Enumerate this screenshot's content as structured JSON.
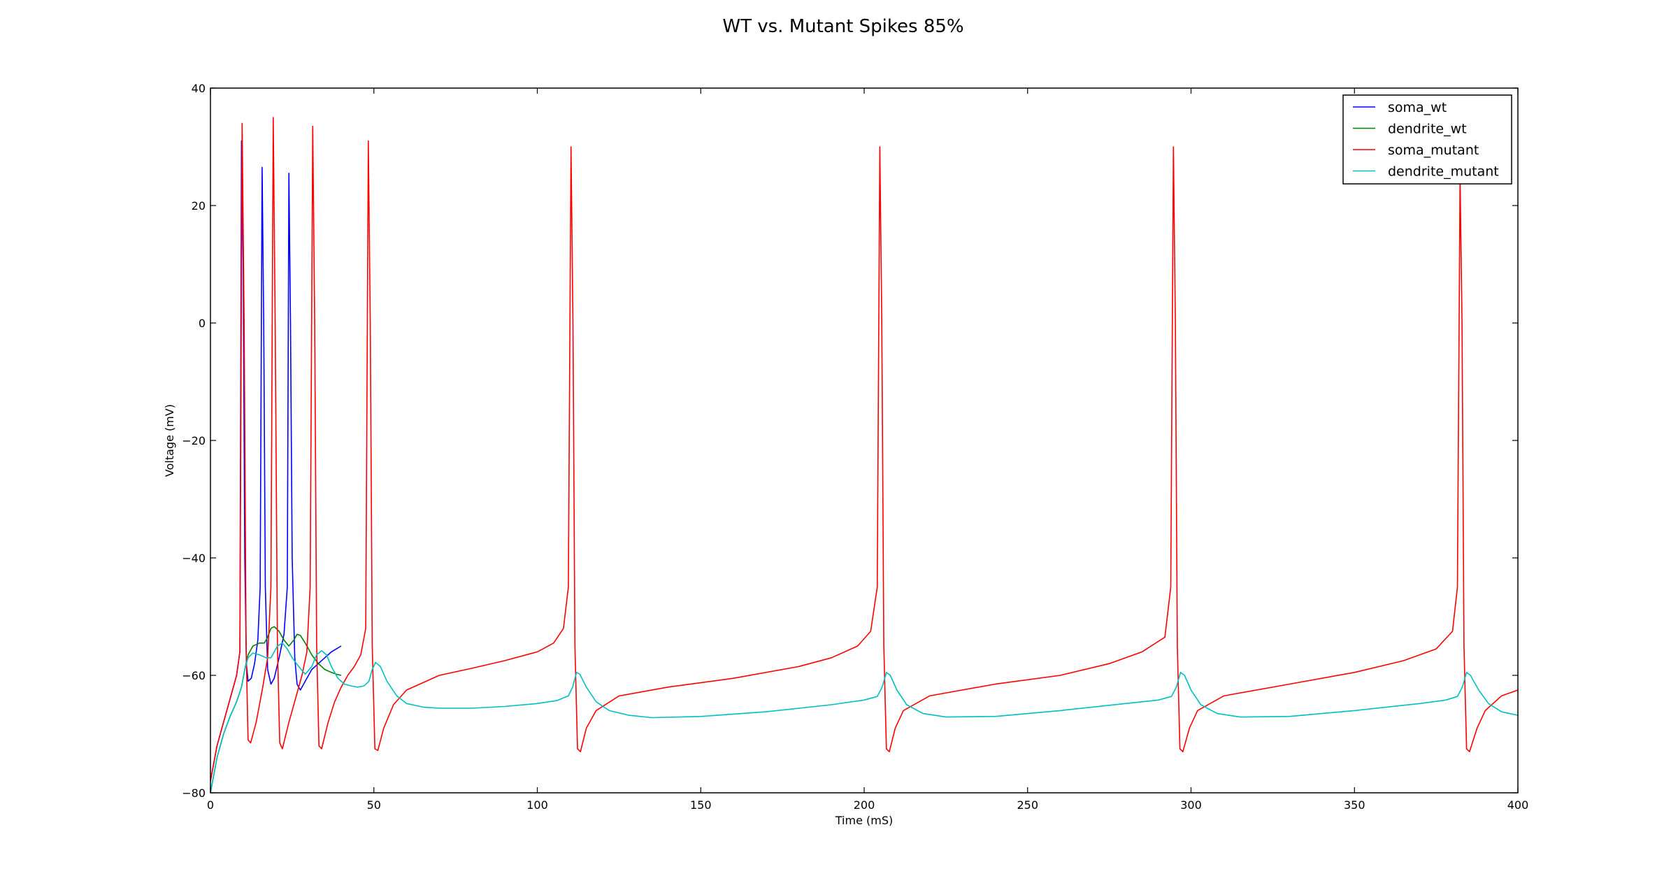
{
  "chart_data": {
    "type": "line",
    "title": "WT vs. Mutant Spikes 85%",
    "xlabel": "Time (mS)",
    "ylabel": "Voltage (mV)",
    "xlim": [
      0,
      400
    ],
    "ylim": [
      -80,
      40
    ],
    "xticks": [
      0,
      50,
      100,
      150,
      200,
      250,
      300,
      350,
      400
    ],
    "yticks": [
      -80,
      -60,
      -40,
      -20,
      0,
      20,
      40
    ],
    "grid": false,
    "legend_position": "top-right",
    "series": [
      {
        "name": "soma_wt",
        "color": "#0000ff",
        "points": [
          [
            0,
            -78
          ],
          [
            2,
            -72
          ],
          [
            4,
            -68
          ],
          [
            6,
            -64
          ],
          [
            8,
            -60
          ],
          [
            9,
            -56
          ],
          [
            9.5,
            31
          ],
          [
            10,
            10
          ],
          [
            10.5,
            -40
          ],
          [
            11,
            -58
          ],
          [
            11.5,
            -61
          ],
          [
            12.5,
            -60.5
          ],
          [
            13.5,
            -58
          ],
          [
            14.5,
            -54
          ],
          [
            15.2,
            -45
          ],
          [
            15.8,
            26.5
          ],
          [
            16.3,
            0
          ],
          [
            16.8,
            -45
          ],
          [
            17.5,
            -59
          ],
          [
            18.5,
            -61.5
          ],
          [
            19.5,
            -60.5
          ],
          [
            21,
            -57
          ],
          [
            22.5,
            -53
          ],
          [
            23.5,
            -45
          ],
          [
            24,
            25.5
          ],
          [
            24.5,
            0
          ],
          [
            25,
            -40
          ],
          [
            25.8,
            -57
          ],
          [
            26.5,
            -61.5
          ],
          [
            27.5,
            -62.5
          ],
          [
            29,
            -61
          ],
          [
            31,
            -59
          ],
          [
            33,
            -58
          ],
          [
            35,
            -57
          ],
          [
            37,
            -56
          ],
          [
            38.5,
            -55.5
          ],
          [
            40,
            -55
          ]
        ]
      },
      {
        "name": "dendrite_wt",
        "color": "#008000",
        "points": [
          [
            0,
            -80
          ],
          [
            2,
            -74
          ],
          [
            4,
            -70
          ],
          [
            6,
            -67
          ],
          [
            8,
            -64.5
          ],
          [
            9.5,
            -62
          ],
          [
            10.5,
            -59
          ],
          [
            11.5,
            -56.5
          ],
          [
            13,
            -55
          ],
          [
            15,
            -54.5
          ],
          [
            16.5,
            -54.5
          ],
          [
            17.5,
            -53.5
          ],
          [
            18.5,
            -52
          ],
          [
            19.5,
            -51.7
          ],
          [
            21,
            -52.5
          ],
          [
            22.5,
            -54
          ],
          [
            24,
            -55
          ],
          [
            25.5,
            -54
          ],
          [
            26.5,
            -53
          ],
          [
            27.5,
            -53.2
          ],
          [
            29,
            -54.5
          ],
          [
            31,
            -56.5
          ],
          [
            33,
            -58
          ],
          [
            35,
            -59
          ],
          [
            37,
            -59.5
          ],
          [
            38.5,
            -59.8
          ],
          [
            40,
            -60
          ]
        ]
      },
      {
        "name": "soma_mutant",
        "color": "#ff0000",
        "points": [
          [
            0,
            -78
          ],
          [
            2,
            -72
          ],
          [
            4,
            -68
          ],
          [
            6,
            -64
          ],
          [
            8,
            -60
          ],
          [
            9,
            -56
          ],
          [
            9.7,
            34
          ],
          [
            10.3,
            0
          ],
          [
            10.9,
            -55
          ],
          [
            11.5,
            -71
          ],
          [
            12.3,
            -71.5
          ],
          [
            14,
            -68
          ],
          [
            16,
            -62
          ],
          [
            17.5,
            -57
          ],
          [
            18.5,
            -45
          ],
          [
            19.2,
            35
          ],
          [
            19.8,
            0
          ],
          [
            20.5,
            -55
          ],
          [
            21.2,
            -71.5
          ],
          [
            22,
            -72.5
          ],
          [
            24,
            -68
          ],
          [
            26,
            -64
          ],
          [
            28,
            -60
          ],
          [
            29.5,
            -56
          ],
          [
            30.5,
            -45
          ],
          [
            31.3,
            33.5
          ],
          [
            31.9,
            0
          ],
          [
            32.5,
            -55
          ],
          [
            33.2,
            -72
          ],
          [
            34,
            -72.5
          ],
          [
            36,
            -68
          ],
          [
            38,
            -64.5
          ],
          [
            40,
            -62
          ],
          [
            42,
            -60
          ],
          [
            44,
            -58.5
          ],
          [
            46,
            -56.5
          ],
          [
            47.5,
            -52
          ],
          [
            48.3,
            31
          ],
          [
            48.9,
            0
          ],
          [
            49.5,
            -55
          ],
          [
            50.3,
            -72.5
          ],
          [
            51.2,
            -72.8
          ],
          [
            53,
            -69
          ],
          [
            56,
            -65
          ],
          [
            60,
            -62.5
          ],
          [
            70,
            -60
          ],
          [
            80,
            -58.8
          ],
          [
            90,
            -57.5
          ],
          [
            100,
            -56
          ],
          [
            105,
            -54.5
          ],
          [
            108,
            -52
          ],
          [
            109.5,
            -45
          ],
          [
            110.3,
            30
          ],
          [
            110.9,
            0
          ],
          [
            111.5,
            -55
          ],
          [
            112.3,
            -72.5
          ],
          [
            113.2,
            -73
          ],
          [
            115,
            -69
          ],
          [
            118,
            -66
          ],
          [
            125,
            -63.5
          ],
          [
            140,
            -62
          ],
          [
            160,
            -60.5
          ],
          [
            180,
            -58.5
          ],
          [
            190,
            -57
          ],
          [
            198,
            -55
          ],
          [
            202,
            -52.5
          ],
          [
            204,
            -45
          ],
          [
            204.8,
            30
          ],
          [
            205.4,
            0
          ],
          [
            206,
            -55
          ],
          [
            206.8,
            -72.5
          ],
          [
            207.7,
            -73
          ],
          [
            209.5,
            -69
          ],
          [
            212,
            -66
          ],
          [
            220,
            -63.5
          ],
          [
            240,
            -61.5
          ],
          [
            260,
            -60
          ],
          [
            275,
            -58
          ],
          [
            285,
            -56
          ],
          [
            292,
            -53.5
          ],
          [
            293.8,
            -45
          ],
          [
            294.6,
            30
          ],
          [
            295.2,
            0
          ],
          [
            295.8,
            -55
          ],
          [
            296.6,
            -72.5
          ],
          [
            297.5,
            -73
          ],
          [
            299.5,
            -69
          ],
          [
            302,
            -66
          ],
          [
            310,
            -63.5
          ],
          [
            330,
            -61.5
          ],
          [
            350,
            -59.5
          ],
          [
            365,
            -57.5
          ],
          [
            375,
            -55.5
          ],
          [
            380,
            -52.5
          ],
          [
            381.5,
            -45
          ],
          [
            382.3,
            25
          ],
          [
            382.9,
            0
          ],
          [
            383.5,
            -55
          ],
          [
            384.3,
            -72.5
          ],
          [
            385.2,
            -73
          ],
          [
            387.5,
            -69
          ],
          [
            390,
            -66
          ],
          [
            395,
            -63.5
          ],
          [
            400,
            -62.5
          ]
        ]
      },
      {
        "name": "dendrite_mutant",
        "color": "#00bfbf",
        "points": [
          [
            0,
            -80
          ],
          [
            2,
            -74
          ],
          [
            4,
            -70
          ],
          [
            6,
            -67
          ],
          [
            8,
            -64.5
          ],
          [
            9.5,
            -62
          ],
          [
            10.5,
            -59
          ],
          [
            11.5,
            -57
          ],
          [
            13,
            -56.2
          ],
          [
            15,
            -56.5
          ],
          [
            17,
            -57
          ],
          [
            18.5,
            -57
          ],
          [
            19.5,
            -56
          ],
          [
            20.5,
            -55
          ],
          [
            22,
            -54.5
          ],
          [
            23.5,
            -55.5
          ],
          [
            25,
            -57
          ],
          [
            27,
            -58.5
          ],
          [
            29,
            -59.8
          ],
          [
            31,
            -58.5
          ],
          [
            32.5,
            -56.5
          ],
          [
            34,
            -55.8
          ],
          [
            35.5,
            -56.5
          ],
          [
            37,
            -58.5
          ],
          [
            39,
            -60.5
          ],
          [
            41,
            -61.5
          ],
          [
            43,
            -61.8
          ],
          [
            45,
            -62
          ],
          [
            47,
            -61.8
          ],
          [
            48.5,
            -61
          ],
          [
            49.5,
            -59
          ],
          [
            50.5,
            -57.8
          ],
          [
            52,
            -58.5
          ],
          [
            54,
            -61
          ],
          [
            57,
            -63.5
          ],
          [
            60,
            -64.8
          ],
          [
            65,
            -65.4
          ],
          [
            70,
            -65.6
          ],
          [
            80,
            -65.6
          ],
          [
            90,
            -65.3
          ],
          [
            100,
            -64.8
          ],
          [
            106,
            -64.3
          ],
          [
            109.5,
            -63.5
          ],
          [
            110.8,
            -62
          ],
          [
            112,
            -59.5
          ],
          [
            113,
            -59.8
          ],
          [
            115,
            -62
          ],
          [
            118,
            -64.5
          ],
          [
            122,
            -66
          ],
          [
            128,
            -66.8
          ],
          [
            135,
            -67.2
          ],
          [
            150,
            -67
          ],
          [
            170,
            -66.2
          ],
          [
            190,
            -65
          ],
          [
            200,
            -64.2
          ],
          [
            204,
            -63.6
          ],
          [
            205.5,
            -62
          ],
          [
            206.8,
            -59.5
          ],
          [
            208,
            -60
          ],
          [
            210,
            -62.5
          ],
          [
            213,
            -65
          ],
          [
            218,
            -66.5
          ],
          [
            225,
            -67.1
          ],
          [
            240,
            -67
          ],
          [
            260,
            -66
          ],
          [
            280,
            -64.8
          ],
          [
            290,
            -64.2
          ],
          [
            294,
            -63.6
          ],
          [
            295.5,
            -62
          ],
          [
            296.8,
            -59.5
          ],
          [
            298,
            -60
          ],
          [
            300,
            -62.5
          ],
          [
            303,
            -65
          ],
          [
            308,
            -66.5
          ],
          [
            315,
            -67.1
          ],
          [
            330,
            -67
          ],
          [
            350,
            -66
          ],
          [
            370,
            -64.8
          ],
          [
            378,
            -64.2
          ],
          [
            381.5,
            -63.6
          ],
          [
            383,
            -62
          ],
          [
            384.3,
            -59.5
          ],
          [
            385.5,
            -60
          ],
          [
            388,
            -62.5
          ],
          [
            391,
            -64.8
          ],
          [
            395,
            -66.2
          ],
          [
            400,
            -66.8
          ]
        ]
      }
    ]
  }
}
